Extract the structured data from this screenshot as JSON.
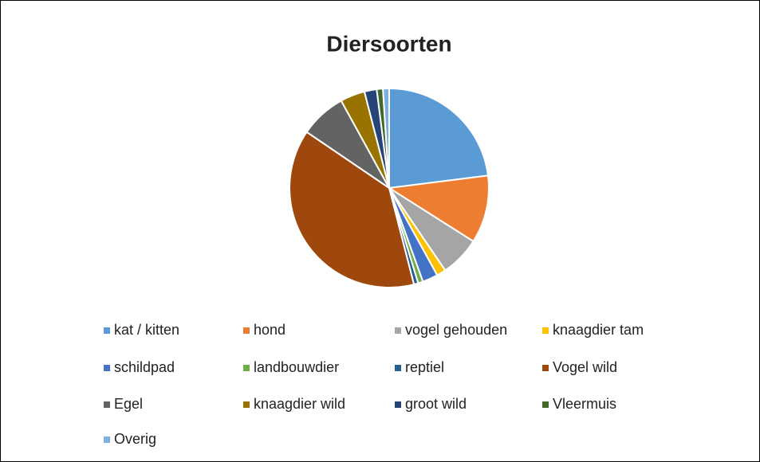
{
  "chart_data": {
    "type": "pie",
    "title": "Diersoorten",
    "categories": [
      "kat / kitten",
      "hond",
      "vogel gehouden",
      "knaagdier tam",
      "schildpad",
      "landbouwdier",
      "reptiel",
      "Vogel wild",
      "Egel",
      "knaagdier wild",
      "groot wild",
      "Vleermuis",
      "Overig"
    ],
    "values": [
      23,
      11,
      6.5,
      1.5,
      2.5,
      0.8,
      0.7,
      38.5,
      7.5,
      4,
      2,
      1,
      1
    ],
    "colors": [
      "#5b9bd5",
      "#ed7d31",
      "#a5a5a5",
      "#ffc000",
      "#4472c4",
      "#70ad47",
      "#255e91",
      "#9e480e",
      "#636363",
      "#997300",
      "#264478",
      "#43682b",
      "#7cafdd"
    ],
    "legend": "bottom"
  }
}
